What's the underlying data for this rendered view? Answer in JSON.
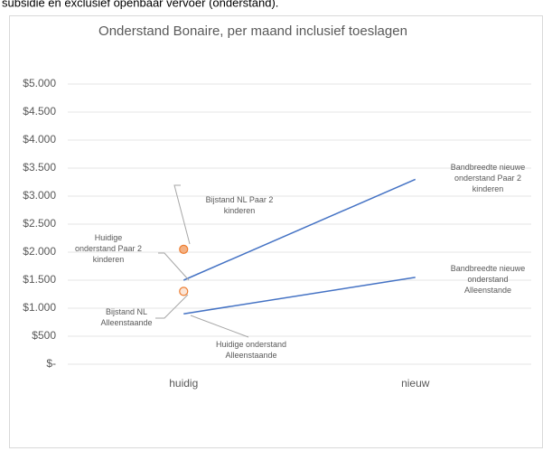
{
  "caption": "subsidie en exclusief openbaar vervoer (onderstand).",
  "chart_data": {
    "type": "line",
    "title": "Onderstand Bonaire, per maand inclusief toeslagen",
    "categories": [
      "huidig",
      "nieuw"
    ],
    "ylim": [
      0,
      5000
    ],
    "yticks": [
      {
        "value": 0,
        "label": "$-"
      },
      {
        "value": 500,
        "label": "$500"
      },
      {
        "value": 1000,
        "label": "$1.000"
      },
      {
        "value": 1500,
        "label": "$1.500"
      },
      {
        "value": 2000,
        "label": "$2.000"
      },
      {
        "value": 2500,
        "label": "$2.500"
      },
      {
        "value": 3000,
        "label": "$3.000"
      },
      {
        "value": 3500,
        "label": "$3.500"
      },
      {
        "value": 4000,
        "label": "$4.000"
      },
      {
        "value": 4500,
        "label": "$4.500"
      },
      {
        "value": 5000,
        "label": "$5.000"
      }
    ],
    "grid": true,
    "series": [
      {
        "color": "#4472c4",
        "style": "line",
        "values": [
          1500,
          3300
        ]
      },
      {
        "color": "#4472c4",
        "style": "line",
        "values": [
          900,
          1550
        ]
      },
      {
        "color": "#ed7d31",
        "style": "marker",
        "fill": "#f4b183",
        "values": [
          2050,
          null
        ]
      },
      {
        "color": "#ed7d31",
        "style": "marker",
        "fill": "#fbe5d6",
        "values": [
          1300,
          null
        ]
      }
    ],
    "annotations": [
      {
        "lines": [
          "Bandbreedte nieuwe",
          "onderstand Paar 2",
          "kinderen"
        ]
      },
      {
        "lines": [
          "Bandbreedte nieuwe",
          "onderstand",
          "Alleenstande"
        ]
      },
      {
        "lines": [
          "Bijstand NL Paar 2",
          "kinderen"
        ]
      },
      {
        "lines": [
          "Huidige",
          "onderstand Paar 2",
          "kinderen"
        ]
      },
      {
        "lines": [
          "Bijstand NL",
          "Alleenstaande"
        ]
      },
      {
        "lines": [
          "Huidige onderstand",
          "Alleenstaande"
        ]
      }
    ]
  }
}
